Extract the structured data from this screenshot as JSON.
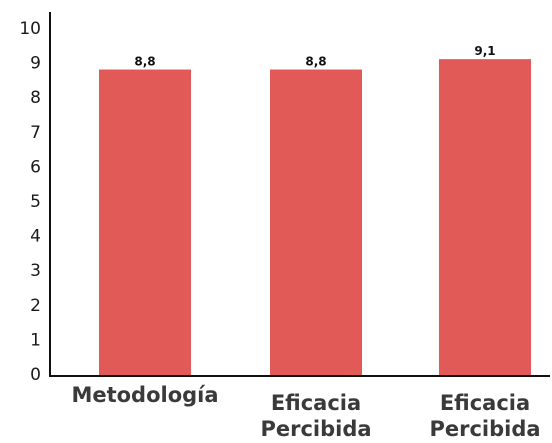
{
  "chart_data": {
    "type": "bar",
    "categories": [
      [
        "Metodología"
      ],
      [
        "Eficacia",
        "Percibida"
      ],
      [
        "Eficacia",
        "Percibida"
      ]
    ],
    "values": [
      8.8,
      8.8,
      9.1
    ],
    "data_labels": [
      "8,8",
      "8,8",
      "9,1"
    ],
    "ylim": [
      0,
      10
    ],
    "yticks": [
      "0",
      "1",
      "2",
      "3",
      "4",
      "5",
      "6",
      "7",
      "8",
      "9",
      "10"
    ],
    "title": "",
    "xlabel": "",
    "ylabel": "",
    "grid": false,
    "bar_color": "#e25a57"
  }
}
